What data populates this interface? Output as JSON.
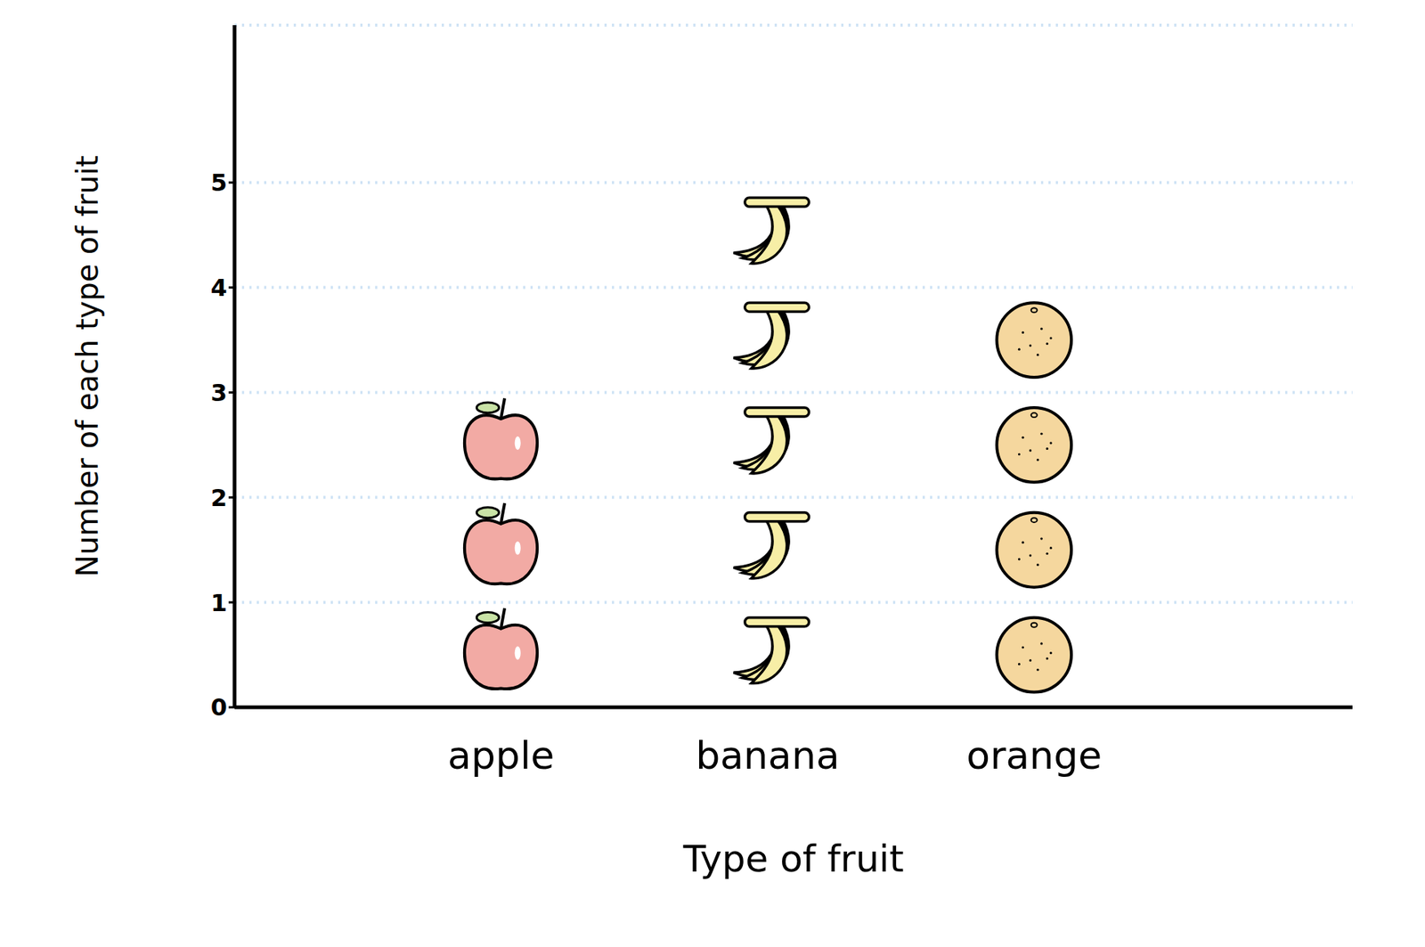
{
  "chart_data": {
    "type": "pictograph",
    "categories": [
      "apple",
      "banana",
      "orange"
    ],
    "values": [
      3,
      5,
      4
    ],
    "colors": [
      "#f2aaa4",
      "#f7eea6",
      "#f5d79e"
    ],
    "x_label": "Type of fruit",
    "y_label": "Number of each type of fruit",
    "ylim": [
      0,
      6.5
    ],
    "yticks": [
      0,
      1,
      2,
      3,
      4,
      5
    ],
    "grid": true
  }
}
